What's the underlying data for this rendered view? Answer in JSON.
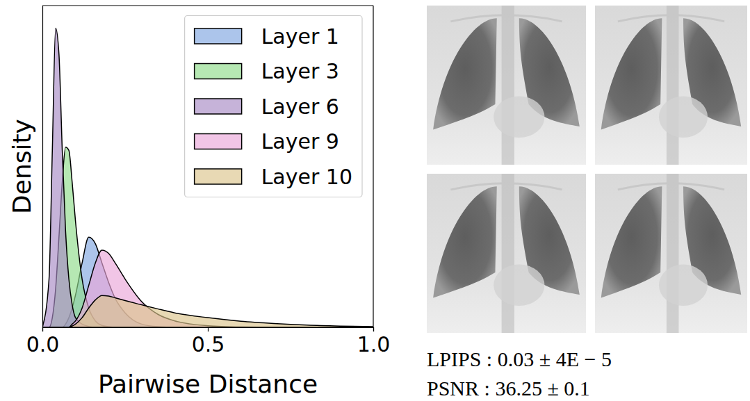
{
  "chart_data": {
    "type": "area",
    "x_label": "Pairwise Distance",
    "y_label": "Density",
    "x": [
      0,
      0.02,
      0.03,
      0.04,
      0.05,
      0.06,
      0.07,
      0.08,
      0.09,
      0.1,
      0.12,
      0.14,
      0.16,
      0.18,
      0.2,
      0.22,
      0.25,
      0.3,
      0.35,
      0.4,
      0.5,
      0.6,
      0.7,
      0.8,
      0.9,
      1.0
    ],
    "series": [
      {
        "name": "Layer 1",
        "color": "#7fa6e0",
        "values": [
          0,
          0,
          0,
          0,
          0,
          0,
          0.01,
          0.03,
          0.06,
          0.1,
          0.2,
          0.28,
          0.26,
          0.2,
          0.14,
          0.09,
          0.045,
          0.01,
          0.002,
          0,
          0,
          0,
          0,
          0,
          0,
          0
        ]
      },
      {
        "name": "Layer 3",
        "color": "#8fdc8a",
        "values": [
          0,
          0,
          0.03,
          0.12,
          0.28,
          0.45,
          0.56,
          0.55,
          0.45,
          0.33,
          0.15,
          0.06,
          0.02,
          0.006,
          0.002,
          0,
          0,
          0,
          0,
          0,
          0,
          0,
          0,
          0,
          0,
          0
        ]
      },
      {
        "name": "Layer 6",
        "color": "#a88bc4",
        "values": [
          0,
          0.15,
          0.55,
          0.93,
          0.85,
          0.55,
          0.3,
          0.15,
          0.07,
          0.03,
          0.01,
          0.003,
          0,
          0,
          0,
          0,
          0,
          0,
          0,
          0,
          0,
          0,
          0,
          0,
          0,
          0
        ]
      },
      {
        "name": "Layer 9",
        "color": "#e9a6d9",
        "values": [
          0,
          0,
          0,
          0,
          0,
          0,
          0,
          0,
          0.01,
          0.02,
          0.06,
          0.13,
          0.2,
          0.24,
          0.23,
          0.2,
          0.15,
          0.08,
          0.04,
          0.02,
          0.005,
          0.001,
          0,
          0,
          0,
          0
        ]
      },
      {
        "name": "Layer 10",
        "color": "#dcc58c",
        "values": [
          0,
          0,
          0,
          0,
          0,
          0,
          0,
          0,
          0.004,
          0.01,
          0.03,
          0.06,
          0.085,
          0.099,
          0.097,
          0.092,
          0.083,
          0.07,
          0.057,
          0.045,
          0.03,
          0.019,
          0.012,
          0.007,
          0.004,
          0.002
        ]
      }
    ],
    "xlim": [
      0,
      1
    ],
    "xticks": [
      {
        "value": 0,
        "label": "0.0"
      },
      {
        "value": 0.5,
        "label": "0.5"
      },
      {
        "value": 1,
        "label": "1.0"
      }
    ],
    "ylim": [
      0,
      1
    ],
    "tick_labels": "x",
    "legend": "upper right",
    "grid": false
  },
  "image_panel": {
    "metrics": [
      "LPIPS : 0.03 ± 4E − 5",
      "PSNR : 36.25 ± 0.1"
    ]
  }
}
